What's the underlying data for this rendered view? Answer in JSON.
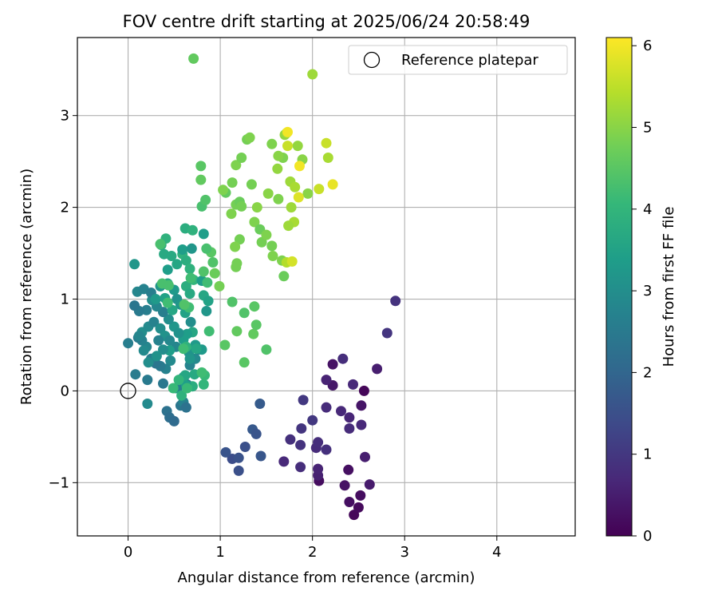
{
  "chart_data": {
    "type": "scatter",
    "title": "FOV centre drift starting at 2025/06/24 20:58:49",
    "xlabel": "Angular distance from reference (arcmin)",
    "ylabel": "Rotation from reference (arcmin)",
    "xlim": [
      -0.55,
      4.85
    ],
    "ylim": [
      -1.58,
      3.85
    ],
    "xticks": [
      0,
      1,
      2,
      3,
      4
    ],
    "yticks": [
      -1,
      0,
      1,
      2,
      3
    ],
    "xtick_labels": [
      "0",
      "1",
      "2",
      "3",
      "4"
    ],
    "ytick_labels": [
      "−1",
      "0",
      "1",
      "2",
      "3"
    ],
    "grid": true,
    "legend": {
      "position": "top-right",
      "label": "Reference platepar"
    },
    "reference_point": {
      "x": 0,
      "y": 0
    },
    "colorbar": {
      "label": "Hours from first FF file",
      "range": [
        0,
        6.1
      ],
      "ticks": [
        0,
        1,
        2,
        3,
        4,
        5,
        6
      ],
      "tick_labels": [
        "0",
        "1",
        "2",
        "3",
        "4",
        "5",
        "6"
      ],
      "colormap": "viridis"
    },
    "colors": {
      "viridis": [
        "#440154",
        "#482878",
        "#3e4989",
        "#31688e",
        "#26828e",
        "#1f9e89",
        "#35b779",
        "#6ece58",
        "#b5de2b",
        "#fde725"
      ],
      "grid": "#b0b0b0",
      "axis": "#000000"
    },
    "points": [
      [
        2.45,
        -1.35,
        0.1
      ],
      [
        2.5,
        -1.27,
        0.15
      ],
      [
        2.4,
        -1.21,
        0.25
      ],
      [
        2.52,
        -1.14,
        0.2
      ],
      [
        2.35,
        -1.03,
        0.3
      ],
      [
        2.62,
        -1.02,
        0.45
      ],
      [
        2.07,
        -0.98,
        0.2
      ],
      [
        2.06,
        -0.92,
        0.55
      ],
      [
        2.39,
        -0.86,
        0.25
      ],
      [
        2.06,
        -0.85,
        0.6
      ],
      [
        2.57,
        -0.72,
        0.5
      ],
      [
        1.87,
        -0.83,
        0.8
      ],
      [
        1.69,
        -0.77,
        0.7
      ],
      [
        2.15,
        -0.64,
        0.85
      ],
      [
        2.04,
        -0.62,
        0.75
      ],
      [
        2.06,
        -0.56,
        0.8
      ],
      [
        1.87,
        -0.59,
        0.9
      ],
      [
        1.76,
        -0.53,
        0.85
      ],
      [
        2.4,
        -0.41,
        0.75
      ],
      [
        1.88,
        -0.41,
        0.95
      ],
      [
        2.53,
        -0.37,
        0.7
      ],
      [
        2.0,
        -0.32,
        1.0
      ],
      [
        2.4,
        -0.29,
        0.65
      ],
      [
        2.31,
        -0.22,
        0.7
      ],
      [
        2.15,
        -0.18,
        0.75
      ],
      [
        2.53,
        -0.16,
        0.35
      ],
      [
        1.9,
        -0.1,
        1.0
      ],
      [
        2.56,
        0.0,
        0.1
      ],
      [
        2.22,
        0.06,
        0.4
      ],
      [
        2.44,
        0.07,
        0.7
      ],
      [
        2.15,
        0.12,
        0.6
      ],
      [
        2.22,
        0.29,
        0.3
      ],
      [
        2.33,
        0.35,
        0.8
      ],
      [
        2.7,
        0.24,
        0.5
      ],
      [
        2.81,
        0.63,
        0.95
      ],
      [
        2.9,
        0.98,
        0.9
      ],
      [
        1.2,
        -0.87,
        1.5
      ],
      [
        1.13,
        -0.74,
        1.45
      ],
      [
        1.2,
        -0.73,
        1.55
      ],
      [
        1.06,
        -0.67,
        1.6
      ],
      [
        1.27,
        -0.61,
        1.5
      ],
      [
        1.44,
        -0.71,
        1.65
      ],
      [
        1.35,
        -0.42,
        1.7
      ],
      [
        1.39,
        -0.47,
        1.6
      ],
      [
        1.43,
        -0.14,
        1.75
      ],
      [
        0.0,
        0.52,
        2.6
      ],
      [
        0.08,
        0.18,
        2.55
      ],
      [
        0.21,
        0.12,
        2.5
      ],
      [
        0.21,
        -0.14,
        2.9
      ],
      [
        0.38,
        0.08,
        2.45
      ],
      [
        0.42,
        -0.22,
        2.3
      ],
      [
        0.45,
        -0.29,
        2.2
      ],
      [
        0.5,
        -0.33,
        2.1
      ],
      [
        0.52,
        0.03,
        3.2
      ],
      [
        0.57,
        -0.16,
        2.4
      ],
      [
        0.6,
        -0.12,
        2.7
      ],
      [
        0.63,
        -0.18,
        2.3
      ],
      [
        0.55,
        0.05,
        2.6
      ],
      [
        0.64,
        0.07,
        2.45
      ],
      [
        0.6,
        0.15,
        3.1
      ],
      [
        0.67,
        0.28,
        2.75
      ],
      [
        0.73,
        0.35,
        2.9
      ],
      [
        0.77,
        0.45,
        2.6
      ],
      [
        0.73,
        0.5,
        3.3
      ],
      [
        0.66,
        0.42,
        3.15
      ],
      [
        0.6,
        0.56,
        3.4
      ],
      [
        0.52,
        0.48,
        2.8
      ],
      [
        0.46,
        0.33,
        2.9
      ],
      [
        0.41,
        0.24,
        2.7
      ],
      [
        0.35,
        0.27,
        2.5
      ],
      [
        0.3,
        0.3,
        2.4
      ],
      [
        0.25,
        0.35,
        2.6
      ],
      [
        0.2,
        0.48,
        2.8
      ],
      [
        0.15,
        0.55,
        2.7
      ],
      [
        0.11,
        0.58,
        2.5
      ],
      [
        0.15,
        0.64,
        3.0
      ],
      [
        0.22,
        0.7,
        2.9
      ],
      [
        0.28,
        0.75,
        2.7
      ],
      [
        0.35,
        0.68,
        3.0
      ],
      [
        0.4,
        0.6,
        3.1
      ],
      [
        0.45,
        0.55,
        2.85
      ],
      [
        0.5,
        0.7,
        3.2
      ],
      [
        0.44,
        0.78,
        3.0
      ],
      [
        0.38,
        0.86,
        2.6
      ],
      [
        0.31,
        0.92,
        2.8
      ],
      [
        0.26,
        0.99,
        3.0
      ],
      [
        0.2,
        0.88,
        2.6
      ],
      [
        0.12,
        0.87,
        2.5
      ],
      [
        0.07,
        0.93,
        2.4
      ],
      [
        0.1,
        1.08,
        2.8
      ],
      [
        0.17,
        1.11,
        2.7
      ],
      [
        0.25,
        1.07,
        2.6
      ],
      [
        0.3,
        1.0,
        3.3
      ],
      [
        0.35,
        1.14,
        3.2
      ],
      [
        0.43,
        1.17,
        3.6
      ],
      [
        0.5,
        1.1,
        3.3
      ],
      [
        0.53,
        1.0,
        3.1
      ],
      [
        0.57,
        0.94,
        3.2
      ],
      [
        0.62,
        0.85,
        3.5
      ],
      [
        0.68,
        0.75,
        3.0
      ],
      [
        0.7,
        0.64,
        3.6
      ],
      [
        0.64,
        0.62,
        3.4
      ],
      [
        0.55,
        0.63,
        3.1
      ],
      [
        0.48,
        0.88,
        3.6
      ],
      [
        0.4,
        1.01,
        3.5
      ],
      [
        0.43,
        1.32,
        3.4
      ],
      [
        0.39,
        1.49,
        3.7
      ],
      [
        0.41,
        1.66,
        3.9
      ],
      [
        0.36,
        1.59,
        3.8
      ],
      [
        0.47,
        1.47,
        3.7
      ],
      [
        0.59,
        1.49,
        3.9
      ],
      [
        0.53,
        1.38,
        3.6
      ],
      [
        0.63,
        1.42,
        3.8
      ],
      [
        0.67,
        1.33,
        3.9
      ],
      [
        0.71,
        1.21,
        4.0
      ],
      [
        0.63,
        1.14,
        3.8
      ],
      [
        0.67,
        1.06,
        3.7
      ],
      [
        0.59,
        1.54,
        3.4
      ],
      [
        0.69,
        1.55,
        3.2
      ],
      [
        0.62,
        1.77,
        3.8
      ],
      [
        0.7,
        1.75,
        3.9
      ],
      [
        0.82,
        1.71,
        3.4
      ],
      [
        0.8,
        1.2,
        3.4
      ],
      [
        0.82,
        1.04,
        3.6
      ],
      [
        0.87,
        0.98,
        3.5
      ],
      [
        0.85,
        0.87,
        3.2
      ],
      [
        0.8,
        0.45,
        3.3
      ],
      [
        0.74,
        0.46,
        3.6
      ],
      [
        0.63,
        0.48,
        3.9
      ],
      [
        0.72,
        0.18,
        3.7
      ],
      [
        0.7,
        0.05,
        3.8
      ],
      [
        0.63,
        0.06,
        3.4
      ],
      [
        0.62,
        0.17,
        3.6
      ],
      [
        0.67,
        0.35,
        3.2
      ],
      [
        0.45,
        0.44,
        3.4
      ],
      [
        0.33,
        0.55,
        2.7
      ],
      [
        0.38,
        0.45,
        3.0
      ],
      [
        0.31,
        0.38,
        3.1
      ],
      [
        0.22,
        0.31,
        3.0
      ],
      [
        0.17,
        0.44,
        2.9
      ],
      [
        0.12,
        0.6,
        2.8
      ],
      [
        0.07,
        1.38,
        3.2
      ],
      [
        0.49,
        0.03,
        4.1
      ],
      [
        0.55,
        0.12,
        4.0
      ],
      [
        0.58,
        -0.05,
        3.9
      ],
      [
        0.64,
        0.03,
        4.1
      ],
      [
        0.82,
        0.07,
        4.0
      ],
      [
        0.83,
        0.17,
        4.1
      ],
      [
        0.8,
        0.2,
        4.2
      ],
      [
        0.88,
        0.65,
        4.2
      ],
      [
        0.6,
        0.46,
        4.2
      ],
      [
        0.66,
        0.91,
        4.2
      ],
      [
        0.61,
        0.94,
        4.4
      ],
      [
        0.68,
        1.23,
        4.2
      ],
      [
        0.82,
        1.3,
        4.4
      ],
      [
        0.86,
        1.18,
        4.2
      ],
      [
        0.92,
        1.4,
        4.4
      ],
      [
        0.9,
        1.51,
        4.5
      ],
      [
        0.85,
        1.55,
        4.3
      ],
      [
        0.8,
        2.01,
        4.3
      ],
      [
        0.84,
        2.08,
        4.4
      ],
      [
        0.79,
        2.3,
        4.6
      ],
      [
        0.79,
        2.45,
        4.5
      ],
      [
        0.35,
        1.6,
        4.3
      ],
      [
        0.44,
        1.15,
        4.3
      ],
      [
        0.37,
        1.17,
        4.3
      ],
      [
        0.43,
        0.96,
        4.2
      ],
      [
        0.94,
        1.28,
        4.7
      ],
      [
        0.99,
        1.14,
        4.8
      ],
      [
        1.05,
        0.5,
        4.5
      ],
      [
        1.26,
        0.31,
        4.5
      ],
      [
        1.18,
        0.65,
        4.6
      ],
      [
        1.36,
        0.62,
        4.6
      ],
      [
        1.39,
        0.72,
        4.5
      ],
      [
        1.37,
        0.92,
        4.5
      ],
      [
        1.26,
        0.85,
        4.4
      ],
      [
        1.13,
        0.97,
        4.4
      ],
      [
        1.5,
        0.45,
        4.4
      ],
      [
        1.17,
        1.35,
        4.8
      ],
      [
        1.18,
        1.39,
        4.8
      ],
      [
        1.21,
        1.65,
        4.8
      ],
      [
        1.16,
        1.57,
        4.9
      ],
      [
        1.12,
        1.93,
        4.9
      ],
      [
        1.17,
        2.03,
        4.8
      ],
      [
        1.21,
        2.06,
        4.7
      ],
      [
        1.23,
        2.01,
        4.8
      ],
      [
        1.13,
        2.27,
        4.8
      ],
      [
        1.06,
        2.16,
        4.6
      ],
      [
        1.03,
        2.19,
        4.9
      ],
      [
        1.17,
        2.46,
        4.9
      ],
      [
        1.23,
        2.54,
        4.8
      ],
      [
        1.29,
        2.74,
        4.8
      ],
      [
        1.32,
        2.76,
        4.9
      ],
      [
        1.34,
        2.25,
        4.8
      ],
      [
        1.4,
        2.0,
        5.0
      ],
      [
        1.37,
        1.84,
        4.9
      ],
      [
        1.43,
        1.76,
        4.7
      ],
      [
        1.45,
        1.62,
        4.8
      ],
      [
        1.5,
        1.7,
        4.9
      ],
      [
        1.56,
        1.58,
        4.8
      ],
      [
        1.57,
        1.47,
        4.9
      ],
      [
        1.67,
        1.42,
        4.9
      ],
      [
        1.69,
        1.25,
        4.7
      ],
      [
        1.52,
        2.15,
        5.0
      ],
      [
        1.63,
        2.09,
        4.9
      ],
      [
        1.68,
        2.54,
        4.9
      ],
      [
        1.63,
        2.56,
        5.0
      ],
      [
        1.62,
        2.42,
        5.1
      ],
      [
        1.56,
        2.69,
        4.9
      ],
      [
        1.7,
        2.79,
        5.1
      ],
      [
        1.72,
        2.81,
        5.2
      ],
      [
        0.71,
        3.62,
        4.6
      ],
      [
        2.0,
        3.45,
        5.2
      ],
      [
        1.84,
        2.67,
        5.1
      ],
      [
        1.89,
        2.52,
        5.0
      ],
      [
        1.76,
        2.28,
        5.2
      ],
      [
        1.81,
        2.22,
        5.3
      ],
      [
        1.95,
        2.15,
        5.0
      ],
      [
        1.77,
        2.0,
        5.2
      ],
      [
        1.8,
        1.84,
        5.3
      ],
      [
        1.74,
        1.8,
        5.2
      ],
      [
        1.72,
        1.4,
        5.4
      ],
      [
        1.78,
        1.41,
        5.7
      ],
      [
        2.07,
        2.2,
        5.6
      ],
      [
        2.15,
        2.7,
        5.6
      ],
      [
        2.17,
        2.54,
        5.3
      ],
      [
        2.22,
        2.25,
        5.9
      ],
      [
        1.73,
        2.67,
        5.6
      ],
      [
        1.73,
        2.82,
        6.0
      ],
      [
        1.86,
        2.45,
        6.0
      ],
      [
        1.85,
        2.11,
        5.8
      ]
    ]
  }
}
